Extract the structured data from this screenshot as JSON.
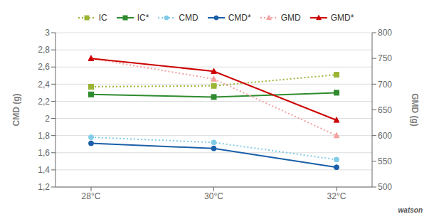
{
  "chart_data": {
    "type": "line",
    "categories": [
      "28°C",
      "30°C",
      "32°C"
    ],
    "series": [
      {
        "name": "IC",
        "color": "#9ab535",
        "marker": "square",
        "line_style": "dotted",
        "values": [
          2.37,
          2.38,
          2.51
        ]
      },
      {
        "name": "IC*",
        "color": "#2e8b2e",
        "marker": "square",
        "line_style": "solid",
        "values": [
          2.28,
          2.25,
          2.3
        ]
      },
      {
        "name": "CMD",
        "color": "#80cce8",
        "marker": "circle",
        "line_style": "dotted",
        "values": [
          1.78,
          1.72,
          1.52
        ]
      },
      {
        "name": "CMD*",
        "color": "#1a5fa8",
        "marker": "circle",
        "line_style": "solid",
        "values": [
          1.71,
          1.65,
          1.43
        ]
      },
      {
        "name": "GMD",
        "color": "#f4a0a0",
        "marker": "triangle",
        "line_style": "dotted",
        "axis": "y2",
        "values": [
          750,
          710,
          600
        ]
      },
      {
        "name": "GMD*",
        "color": "#cc0000",
        "marker": "triangle",
        "line_style": "solid",
        "axis": "y2",
        "values": [
          750,
          725,
          630
        ]
      }
    ],
    "ylabel": "CMD (g)",
    "y2label": "GMD (g)",
    "ylim": [
      1.2,
      3.0
    ],
    "yticks": [
      {
        "value": 1.2,
        "label": "1,2"
      },
      {
        "value": 1.4,
        "label": "1,4"
      },
      {
        "value": 1.6,
        "label": "1,6"
      },
      {
        "value": 1.8,
        "label": "1,8"
      },
      2,
      {
        "value": 2.2,
        "label": "2,2"
      },
      {
        "value": 2.4,
        "label": "2,4"
      },
      {
        "value": 2.6,
        "label": "2,6"
      },
      {
        "value": 2.8,
        "label": "2,8"
      },
      3
    ],
    "y2lim": [
      500,
      800
    ],
    "y2ticks": [
      500,
      550,
      600,
      650,
      700,
      750,
      800
    ],
    "grid": true,
    "legend": "top",
    "annotations": [
      "watson"
    ]
  }
}
